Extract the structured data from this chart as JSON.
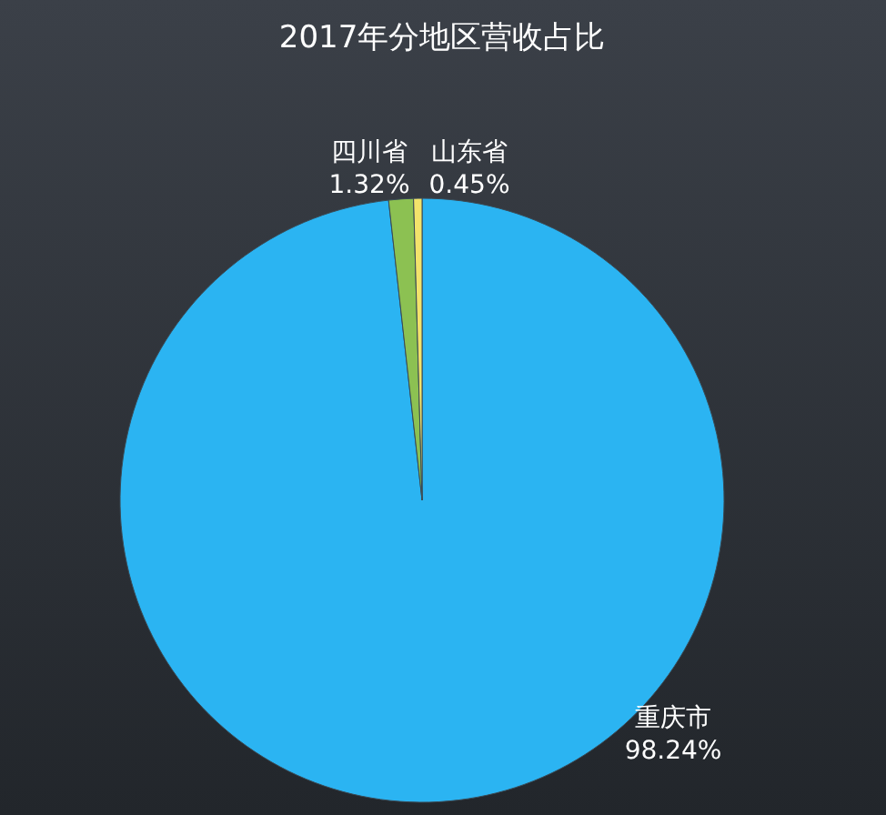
{
  "chart_data": {
    "type": "pie",
    "title": "2017年分地区营收占比",
    "categories": [
      "重庆市",
      "四川省",
      "山东省"
    ],
    "values": [
      98.24,
      1.32,
      0.45
    ],
    "colors": [
      "#2bb4f2",
      "#8cc152",
      "#f3e36b"
    ],
    "value_labels": [
      "98.24%",
      "1.32%",
      "0.45%"
    ]
  }
}
